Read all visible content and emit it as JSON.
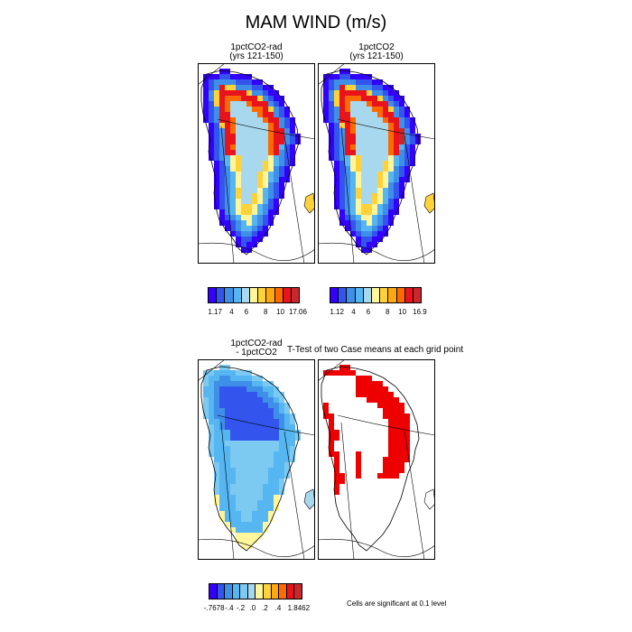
{
  "figure": {
    "title": "MAM WIND (m/s)"
  },
  "panels": [
    {
      "id": "p1",
      "title_line1": "1pctCO2-rad",
      "title_line2": "(yrs 121-150)",
      "variant": "field_a"
    },
    {
      "id": "p2",
      "title_line1": "1pctCO2",
      "title_line2": "(yrs 121-150)",
      "variant": "field_b"
    },
    {
      "id": "p3",
      "title_line1": "1pctCO2-rad",
      "title_line2": "- 1pctCO2",
      "variant": "diff"
    },
    {
      "id": "p4",
      "title_line1": "",
      "title_line2": "",
      "variant": "ttest"
    }
  ],
  "ttest": {
    "title": "T-Test of two Case means at each grid point"
  },
  "colorbars": [
    {
      "id": "cb1",
      "colors": [
        "#3300ff",
        "#3355ee",
        "#3f8fe8",
        "#55b6f2",
        "#a8d8ee",
        "#fff59a",
        "#ffd23a",
        "#ffa812",
        "#ff6a00",
        "#e8131b",
        "#c8282c"
      ],
      "labels": [
        "1.17",
        "4",
        "6",
        "8",
        "10",
        "17.06"
      ]
    },
    {
      "id": "cb2",
      "colors": [
        "#3300ff",
        "#3355ee",
        "#3f8fe8",
        "#55b6f2",
        "#a8d8ee",
        "#fff59a",
        "#ffd23a",
        "#ffa812",
        "#ff6a00",
        "#e8131b",
        "#c8282c"
      ],
      "labels": [
        "1.12",
        "4",
        "6",
        "8",
        "10",
        "16.9"
      ]
    },
    {
      "id": "cb3",
      "colors": [
        "#3300ff",
        "#3355ee",
        "#3f8fe8",
        "#55b6f2",
        "#7ccaf2",
        "#a8d8ee",
        "#fff59a",
        "#ffd23a",
        "#ffa812",
        "#ff6a00",
        "#e8131b",
        "#c8282c"
      ],
      "labels": [
        "-.7678",
        "-.4",
        "-.2",
        ".0",
        ".2",
        ".4",
        "1.8462"
      ]
    }
  ],
  "significance_note": "Cells are significant at 0.1 level"
}
